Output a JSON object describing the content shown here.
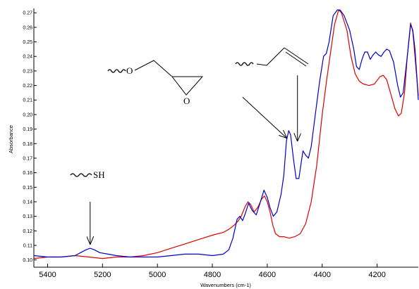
{
  "chart_data": {
    "type": "line",
    "title": "",
    "xlabel": "Wavenumbers (cm-1)",
    "ylabel": "Absorbance",
    "xlim": [
      5450,
      4050
    ],
    "ylim": [
      0.095,
      0.273
    ],
    "x_reversed": true,
    "grid": false,
    "xticks": [
      5400,
      5200,
      5000,
      4800,
      4600,
      4400,
      4200
    ],
    "xtick_labels": [
      "5400",
      "5200",
      "5000",
      "4800",
      "4600",
      "4400",
      "4200"
    ],
    "yticks": [
      0.1,
      0.11,
      0.12,
      0.13,
      0.14,
      0.15,
      0.16,
      0.17,
      0.18,
      0.19,
      0.2,
      0.21,
      0.22,
      0.23,
      0.24,
      0.25,
      0.26,
      0.27
    ],
    "ytick_labels": [
      "0.10",
      "0.11",
      "0.12",
      "0.13",
      "0.14",
      "0.15",
      "0.16",
      "0.17",
      "0.18",
      "0.19",
      "0.20",
      "0.21",
      "0.22",
      "0.23",
      "0.24",
      "0.25",
      "0.26",
      "0.27"
    ],
    "series": [
      {
        "color": "#0000cc",
        "points": [
          [
            5450,
            0.103
          ],
          [
            5400,
            0.102
          ],
          [
            5350,
            0.102
          ],
          [
            5300,
            0.103
          ],
          [
            5280,
            0.105
          ],
          [
            5260,
            0.107
          ],
          [
            5245,
            0.108
          ],
          [
            5230,
            0.107
          ],
          [
            5210,
            0.105
          ],
          [
            5180,
            0.104
          ],
          [
            5150,
            0.103
          ],
          [
            5100,
            0.102
          ],
          [
            5050,
            0.102
          ],
          [
            5000,
            0.102
          ],
          [
            4950,
            0.103
          ],
          [
            4900,
            0.104
          ],
          [
            4850,
            0.104
          ],
          [
            4800,
            0.103
          ],
          [
            4760,
            0.104
          ],
          [
            4740,
            0.107
          ],
          [
            4725,
            0.115
          ],
          [
            4710,
            0.128
          ],
          [
            4700,
            0.13
          ],
          [
            4690,
            0.127
          ],
          [
            4680,
            0.132
          ],
          [
            4668,
            0.139
          ],
          [
            4655,
            0.134
          ],
          [
            4640,
            0.131
          ],
          [
            4625,
            0.14
          ],
          [
            4612,
            0.148
          ],
          [
            4600,
            0.143
          ],
          [
            4590,
            0.136
          ],
          [
            4578,
            0.13
          ],
          [
            4565,
            0.133
          ],
          [
            4550,
            0.145
          ],
          [
            4540,
            0.158
          ],
          [
            4530,
            0.182
          ],
          [
            4522,
            0.189
          ],
          [
            4515,
            0.186
          ],
          [
            4505,
            0.17
          ],
          [
            4495,
            0.156
          ],
          [
            4485,
            0.156
          ],
          [
            4478,
            0.165
          ],
          [
            4470,
            0.175
          ],
          [
            4460,
            0.172
          ],
          [
            4450,
            0.17
          ],
          [
            4440,
            0.178
          ],
          [
            4425,
            0.2
          ],
          [
            4410,
            0.222
          ],
          [
            4395,
            0.24
          ],
          [
            4385,
            0.242
          ],
          [
            4375,
            0.25
          ],
          [
            4360,
            0.268
          ],
          [
            4345,
            0.272
          ],
          [
            4335,
            0.272
          ],
          [
            4320,
            0.268
          ],
          [
            4300,
            0.258
          ],
          [
            4285,
            0.245
          ],
          [
            4275,
            0.233
          ],
          [
            4265,
            0.231
          ],
          [
            4255,
            0.238
          ],
          [
            4245,
            0.243
          ],
          [
            4235,
            0.243
          ],
          [
            4225,
            0.238
          ],
          [
            4215,
            0.241
          ],
          [
            4205,
            0.243
          ],
          [
            4195,
            0.241
          ],
          [
            4185,
            0.24
          ],
          [
            4175,
            0.243
          ],
          [
            4165,
            0.245
          ],
          [
            4155,
            0.244
          ],
          [
            4140,
            0.236
          ],
          [
            4125,
            0.22
          ],
          [
            4115,
            0.212
          ],
          [
            4105,
            0.215
          ],
          [
            4090,
            0.24
          ],
          [
            4078,
            0.262
          ],
          [
            4070,
            0.258
          ],
          [
            4062,
            0.245
          ],
          [
            4055,
            0.225
          ],
          [
            4050,
            0.21
          ]
        ]
      },
      {
        "color": "#dd0000",
        "points": [
          [
            5450,
            0.101
          ],
          [
            5400,
            0.102
          ],
          [
            5350,
            0.102
          ],
          [
            5300,
            0.103
          ],
          [
            5250,
            0.102
          ],
          [
            5200,
            0.101
          ],
          [
            5150,
            0.102
          ],
          [
            5100,
            0.102
          ],
          [
            5050,
            0.103
          ],
          [
            5000,
            0.105
          ],
          [
            4950,
            0.108
          ],
          [
            4900,
            0.111
          ],
          [
            4850,
            0.114
          ],
          [
            4800,
            0.117
          ],
          [
            4760,
            0.119
          ],
          [
            4740,
            0.121
          ],
          [
            4720,
            0.124
          ],
          [
            4705,
            0.127
          ],
          [
            4695,
            0.13
          ],
          [
            4680,
            0.137
          ],
          [
            4670,
            0.14
          ],
          [
            4660,
            0.138
          ],
          [
            4648,
            0.133
          ],
          [
            4635,
            0.136
          ],
          [
            4620,
            0.142
          ],
          [
            4610,
            0.144
          ],
          [
            4600,
            0.14
          ],
          [
            4590,
            0.133
          ],
          [
            4580,
            0.124
          ],
          [
            4570,
            0.118
          ],
          [
            4555,
            0.116
          ],
          [
            4540,
            0.116
          ],
          [
            4520,
            0.115
          ],
          [
            4500,
            0.116
          ],
          [
            4480,
            0.118
          ],
          [
            4460,
            0.125
          ],
          [
            4440,
            0.14
          ],
          [
            4420,
            0.165
          ],
          [
            4400,
            0.2
          ],
          [
            4385,
            0.222
          ],
          [
            4370,
            0.242
          ],
          [
            4355,
            0.262
          ],
          [
            4340,
            0.272
          ],
          [
            4330,
            0.27
          ],
          [
            4310,
            0.258
          ],
          [
            4295,
            0.24
          ],
          [
            4280,
            0.228
          ],
          [
            4265,
            0.223
          ],
          [
            4250,
            0.221
          ],
          [
            4230,
            0.22
          ],
          [
            4210,
            0.221
          ],
          [
            4190,
            0.226
          ],
          [
            4178,
            0.227
          ],
          [
            4165,
            0.224
          ],
          [
            4150,
            0.214
          ],
          [
            4135,
            0.204
          ],
          [
            4122,
            0.199
          ],
          [
            4112,
            0.201
          ],
          [
            4100,
            0.215
          ],
          [
            4090,
            0.24
          ],
          [
            4078,
            0.263
          ],
          [
            4070,
            0.257
          ],
          [
            4062,
            0.24
          ],
          [
            4050,
            0.213
          ]
        ]
      }
    ],
    "annotations": [
      {
        "text": "SH",
        "arrow_from": [
          5245,
          0.14
        ],
        "arrow_to": [
          5245,
          0.111
        ]
      },
      {
        "text": "O",
        "arrow_from": [
          4690,
          0.212
        ],
        "arrow_to": [
          4530,
          0.184
        ]
      },
      {
        "text": "O",
        "arrow_from": [
          4490,
          0.227
        ],
        "arrow_to": [
          4490,
          0.182
        ]
      }
    ]
  }
}
